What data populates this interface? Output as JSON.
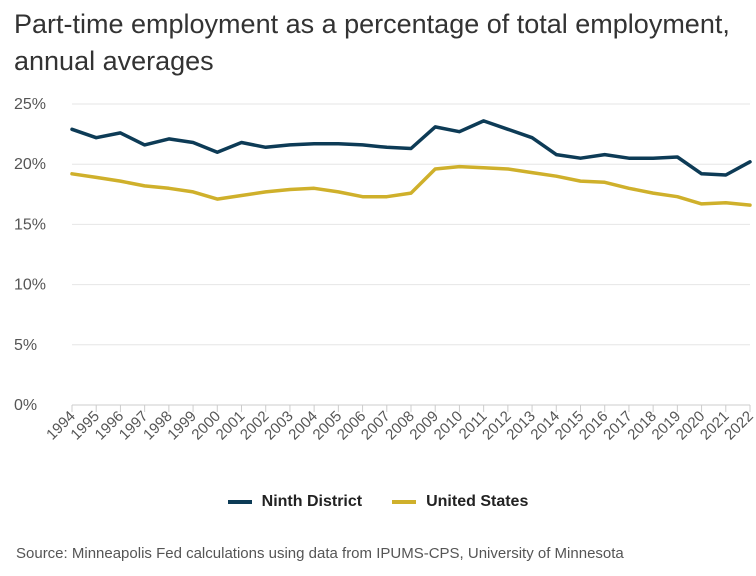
{
  "chart_data": {
    "type": "line",
    "title": "Part-time employment as a percentage of total employment, annual averages",
    "xlabel": "",
    "ylabel": "",
    "ylim": [
      0,
      25
    ],
    "y_ticks": [
      "0%",
      "5%",
      "10%",
      "15%",
      "20%",
      "25%"
    ],
    "y_tick_values": [
      0,
      5,
      10,
      15,
      20,
      25
    ],
    "x": [
      "1994",
      "1995",
      "1996",
      "1997",
      "1998",
      "1999",
      "2000",
      "2001",
      "2002",
      "2003",
      "2004",
      "2005",
      "2006",
      "2007",
      "2008",
      "2009",
      "2010",
      "2011",
      "2012",
      "2013",
      "2014",
      "2015",
      "2016",
      "2017",
      "2018",
      "2019",
      "2020",
      "2021",
      "2022"
    ],
    "series": [
      {
        "name": "Ninth District",
        "color": "#0d3b56",
        "values": [
          22.9,
          22.2,
          22.6,
          21.6,
          22.1,
          21.8,
          21.0,
          21.8,
          21.4,
          21.6,
          21.7,
          21.7,
          21.6,
          21.4,
          21.3,
          23.1,
          22.7,
          23.6,
          22.9,
          22.2,
          20.8,
          20.5,
          20.8,
          20.5,
          20.5,
          20.6,
          19.2,
          19.1,
          20.2
        ]
      },
      {
        "name": "United States",
        "color": "#cfb02b",
        "values": [
          19.2,
          18.9,
          18.6,
          18.2,
          18.0,
          17.7,
          17.1,
          17.4,
          17.7,
          17.9,
          18.0,
          17.7,
          17.3,
          17.3,
          17.6,
          19.6,
          19.8,
          19.7,
          19.6,
          19.3,
          19.0,
          18.6,
          18.5,
          18.0,
          17.6,
          17.3,
          16.7,
          16.8,
          16.6
        ]
      }
    ]
  },
  "source": "Source: Minneapolis Fed calculations using data from IPUMS-CPS, University of Minnesota"
}
